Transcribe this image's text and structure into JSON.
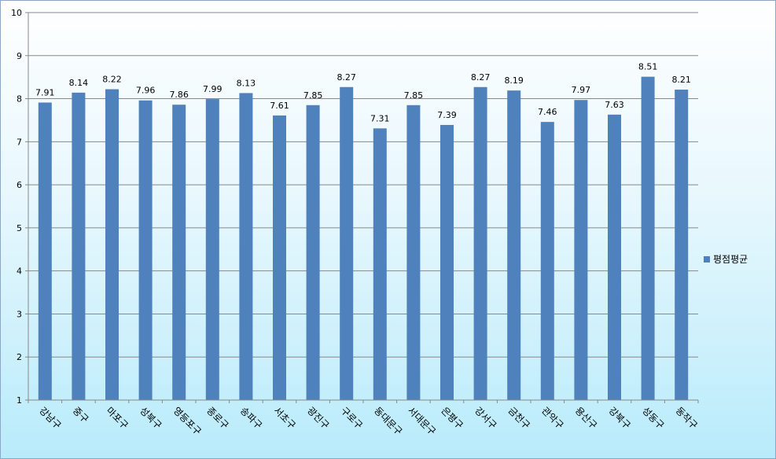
{
  "chart_data": {
    "type": "bar",
    "categories": [
      "강남구",
      "중구",
      "마포구",
      "성북구",
      "영등포구",
      "종로구",
      "송파구",
      "서초구",
      "광진구",
      "구로구",
      "동대문구",
      "서대문구",
      "은평구",
      "강서구",
      "금천구",
      "관악구",
      "용산구",
      "강북구",
      "성동구",
      "동작구"
    ],
    "series": [
      {
        "name": "평점평균",
        "values": [
          7.91,
          8.14,
          8.22,
          7.96,
          7.86,
          7.99,
          8.13,
          7.61,
          7.85,
          8.27,
          7.31,
          7.85,
          7.39,
          8.27,
          8.19,
          7.46,
          7.97,
          7.63,
          8.51,
          8.21
        ],
        "value_labels": [
          "7.91",
          "8.14",
          "8.22",
          "7.96",
          "7.86",
          "7.99",
          "8.13",
          "7.61",
          "7.85",
          "8.27",
          "7.31",
          "7.85",
          "7.39",
          "8.27",
          "8.19",
          "7.46",
          "7.97",
          "7.63",
          "8.51",
          "8.21"
        ]
      }
    ],
    "ylim": [
      1,
      10
    ],
    "y_ticks": [
      "1",
      "2",
      "3",
      "4",
      "5",
      "6",
      "7",
      "8",
      "9",
      "10"
    ],
    "grid": true,
    "legend_position": "right",
    "colors": {
      "bar": "#4f81bd",
      "grid": "#888888",
      "axis": "#888888"
    }
  }
}
